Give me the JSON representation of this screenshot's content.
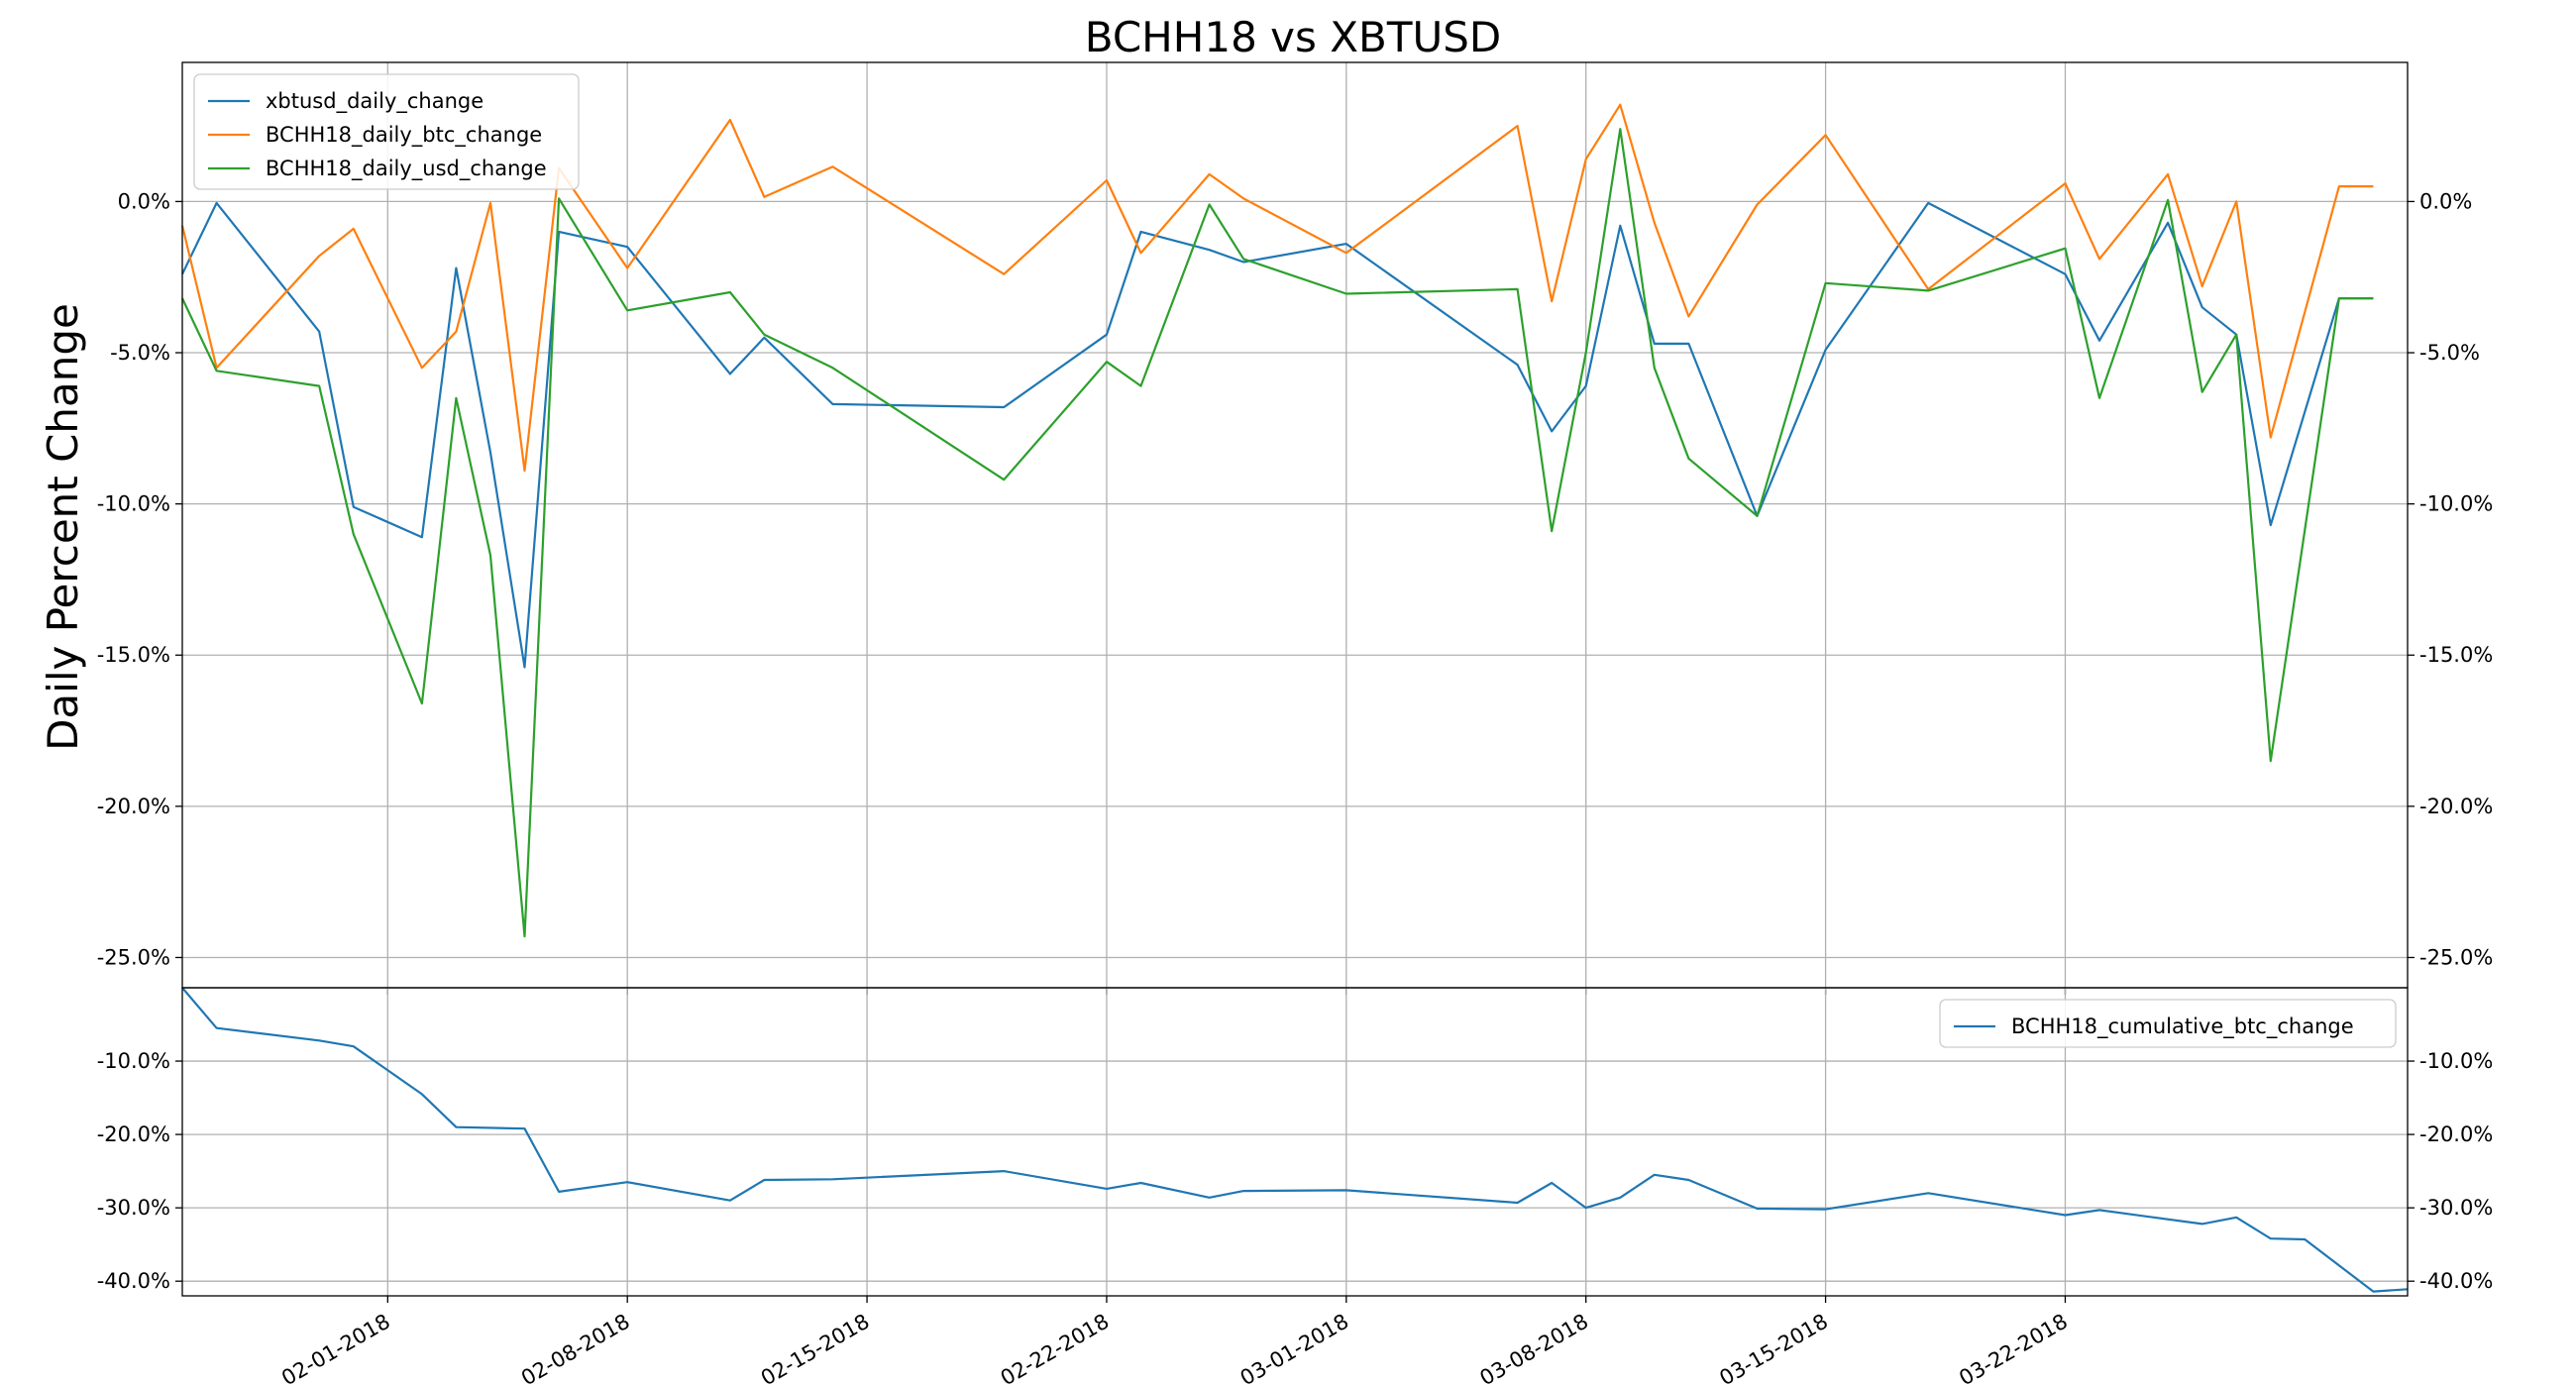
{
  "chart_data": [
    {
      "type": "line",
      "title": "BCHH18 vs XBTUSD",
      "ylabel": "Daily Percent Change",
      "xlabel": "",
      "y_format": "percent",
      "ylim": [
        -26.0,
        4.6
      ],
      "yticks": [
        0,
        -5,
        -10,
        -15,
        -20,
        -25
      ],
      "ytick_labels": [
        "0.0%",
        "-5.0%",
        "-10.0%",
        "-15.0%",
        "-20.0%",
        "-25.0%"
      ],
      "secondary_y_axis_mirrored": true,
      "grid": true,
      "legend": "top-left",
      "x_ticks": [
        "02-01-2018",
        "02-08-2018",
        "02-15-2018",
        "02-22-2018",
        "03-01-2018",
        "03-08-2018",
        "03-15-2018",
        "03-22-2018"
      ],
      "x": [
        "2018-01-26",
        "2018-01-27",
        "2018-01-30",
        "2018-01-31",
        "2018-02-02",
        "2018-02-03",
        "2018-02-04",
        "2018-02-05",
        "2018-02-06",
        "2018-02-08",
        "2018-02-11",
        "2018-02-12",
        "2018-02-14",
        "2018-02-19",
        "2018-02-22",
        "2018-02-23",
        "2018-02-25",
        "2018-02-26",
        "2018-03-01",
        "2018-03-06",
        "2018-03-07",
        "2018-03-08",
        "2018-03-09",
        "2018-03-10",
        "2018-03-11",
        "2018-03-13",
        "2018-03-15",
        "2018-03-18",
        "2018-03-22",
        "2018-03-23",
        "2018-03-25",
        "2018-03-26",
        "2018-03-27",
        "2018-03-28",
        "2018-03-30",
        "2018-03-31"
      ],
      "series": [
        {
          "name": "xbtusd_daily_change",
          "color": "#1f77b4",
          "values": [
            -2.4,
            -0.05,
            -4.3,
            -10.1,
            -11.1,
            -2.2,
            -8.3,
            -15.4,
            -1.0,
            -1.5,
            -5.7,
            -4.5,
            -6.7,
            -6.8,
            -4.4,
            -1.0,
            -1.6,
            -2.0,
            -1.4,
            -5.4,
            -7.6,
            -6.1,
            -0.8,
            -4.7,
            -4.7,
            -10.4,
            -4.9,
            -0.05,
            -2.4,
            -4.6,
            -0.7,
            -3.5,
            -4.4,
            -10.7,
            -3.2,
            -3.2
          ]
        },
        {
          "name": "BCHH18_daily_btc_change",
          "color": "#ff7f0e",
          "values": [
            -0.8,
            -5.5,
            -1.8,
            -0.9,
            -5.5,
            -4.3,
            -0.05,
            -8.9,
            1.1,
            -2.2,
            2.7,
            0.15,
            1.15,
            -2.4,
            0.7,
            -1.7,
            0.9,
            0.1,
            -1.7,
            2.5,
            -3.3,
            1.4,
            3.2,
            -0.7,
            -3.8,
            -0.1,
            2.2,
            -2.9,
            0.6,
            -1.9,
            0.9,
            -2.8,
            0.0,
            -7.8,
            0.5,
            0.5
          ]
        },
        {
          "name": "BCHH18_daily_usd_change",
          "color": "#2ca02c",
          "values": [
            -3.2,
            -5.6,
            -6.1,
            -11.0,
            -16.6,
            -6.5,
            -11.7,
            -24.3,
            0.1,
            -3.6,
            -3.0,
            -4.4,
            -5.5,
            -9.2,
            -5.3,
            -6.1,
            -0.1,
            -1.9,
            -3.05,
            -2.9,
            -10.9,
            -5.0,
            2.4,
            -5.5,
            -8.5,
            -10.4,
            -2.7,
            -2.95,
            -1.55,
            -6.5,
            0.05,
            -6.3,
            -4.4,
            -18.5,
            -3.2,
            -3.2
          ]
        }
      ]
    },
    {
      "type": "line",
      "title": "",
      "ylabel": "",
      "xlabel": "",
      "y_format": "percent",
      "ylim": [
        -42.0,
        0.0
      ],
      "yticks": [
        -10,
        -20,
        -30,
        -40
      ],
      "ytick_labels": [
        "-10.0%",
        "-20.0%",
        "-30.0%",
        "-40.0%"
      ],
      "secondary_y_axis_mirrored": true,
      "grid": true,
      "legend": "top-right",
      "x_ticks": [
        "02-01-2018",
        "02-08-2018",
        "02-15-2018",
        "02-22-2018",
        "03-01-2018",
        "03-08-2018",
        "03-15-2018",
        "03-22-2018"
      ],
      "x": [
        "2018-01-26",
        "2018-01-27",
        "2018-01-30",
        "2018-01-31",
        "2018-02-02",
        "2018-02-03",
        "2018-02-05",
        "2018-02-06",
        "2018-02-08",
        "2018-02-11",
        "2018-02-12",
        "2018-02-14",
        "2018-02-19",
        "2018-02-22",
        "2018-02-23",
        "2018-02-25",
        "2018-02-26",
        "2018-03-01",
        "2018-03-06",
        "2018-03-07",
        "2018-03-08",
        "2018-03-09",
        "2018-03-10",
        "2018-03-11",
        "2018-03-13",
        "2018-03-15",
        "2018-03-18",
        "2018-03-22",
        "2018-03-23",
        "2018-03-26",
        "2018-03-27",
        "2018-03-28",
        "2018-03-29",
        "2018-03-31",
        "2018-04-01"
      ],
      "series": [
        {
          "name": "BCHH18_cumulative_btc_change",
          "color": "#1f77b4",
          "values": [
            0.0,
            -5.5,
            -7.2,
            -8.0,
            -14.5,
            -19.0,
            -19.2,
            -27.8,
            -26.5,
            -29.0,
            -26.2,
            -26.1,
            -25.0,
            -27.4,
            -26.6,
            -28.6,
            -27.7,
            -27.6,
            -29.3,
            -26.6,
            -30.0,
            -28.6,
            -25.5,
            -26.2,
            -30.1,
            -30.2,
            -28.0,
            -31.0,
            -30.3,
            -32.2,
            -31.3,
            -34.2,
            -34.3,
            -41.4,
            -41.1
          ]
        }
      ]
    }
  ]
}
